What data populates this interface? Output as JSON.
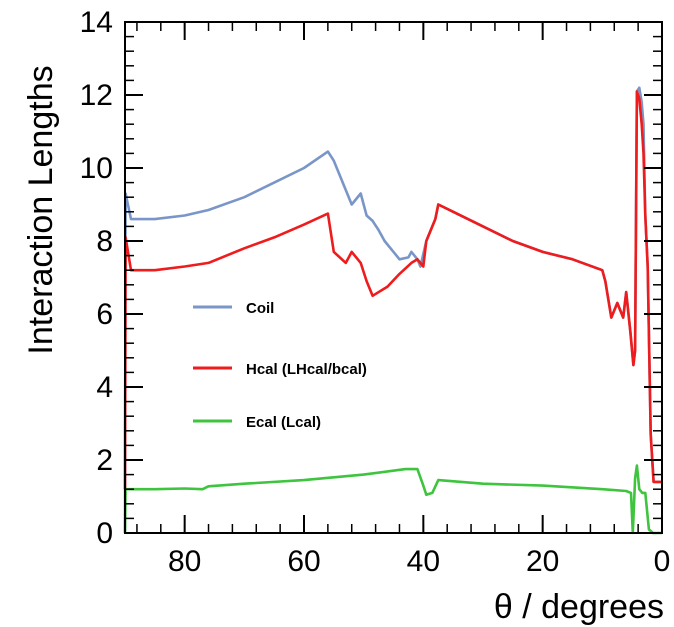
{
  "chart_data": {
    "type": "line",
    "title": "",
    "xlabel": "θ / degrees",
    "ylabel": "Interaction Lengths",
    "xlim": [
      90,
      0
    ],
    "ylim": [
      0,
      14
    ],
    "x_ticks": [
      80,
      60,
      40,
      20,
      0
    ],
    "y_ticks": [
      0,
      2,
      4,
      6,
      8,
      10,
      12,
      14
    ],
    "x_tick_labels": [
      "80",
      "60",
      "40",
      "20",
      "0"
    ],
    "y_tick_labels": [
      "0",
      "2",
      "4",
      "6",
      "8",
      "10",
      "12",
      "14"
    ],
    "grid": false,
    "legend_position": "center-left",
    "series": [
      {
        "name": "Coil",
        "color": "#7a96c8",
        "points": [
          [
            90,
            0
          ],
          [
            89.9,
            9.3
          ],
          [
            89,
            8.6
          ],
          [
            85,
            8.6
          ],
          [
            80,
            8.7
          ],
          [
            76,
            8.85
          ],
          [
            70,
            9.2
          ],
          [
            65,
            9.6
          ],
          [
            60,
            10.0
          ],
          [
            56,
            10.45
          ],
          [
            55,
            10.2
          ],
          [
            52,
            9.0
          ],
          [
            50.5,
            9.3
          ],
          [
            49.5,
            8.7
          ],
          [
            48.5,
            8.55
          ],
          [
            47.5,
            8.3
          ],
          [
            46.5,
            8.0
          ],
          [
            45,
            7.7
          ],
          [
            44,
            7.5
          ],
          [
            42.5,
            7.55
          ],
          [
            42,
            7.7
          ],
          [
            41.5,
            7.6
          ],
          [
            41,
            7.5
          ],
          [
            40.5,
            7.3
          ],
          [
            39.5,
            8.0
          ],
          [
            38,
            8.6
          ],
          [
            37.5,
            9.0
          ],
          [
            35,
            8.8
          ],
          [
            30,
            8.4
          ],
          [
            25,
            8.0
          ],
          [
            20,
            7.7
          ],
          [
            15,
            7.5
          ],
          [
            10,
            7.2
          ],
          [
            9.5,
            6.9
          ],
          [
            8.5,
            5.9
          ],
          [
            7.5,
            6.3
          ],
          [
            6.5,
            5.9
          ],
          [
            6,
            6.6
          ],
          [
            5.3,
            5.5
          ],
          [
            4.8,
            4.6
          ],
          [
            4.5,
            5.0
          ],
          [
            4.2,
            12.1
          ],
          [
            3.8,
            12.2
          ],
          [
            3.4,
            11.8
          ],
          [
            3.1,
            11.2
          ],
          [
            2.8,
            8.7
          ],
          [
            2.4,
            7.3
          ],
          [
            1.9,
            2.7
          ],
          [
            1.4,
            1.4
          ],
          [
            0,
            1.4
          ]
        ]
      },
      {
        "name": "Hcal (LHcal/bcal)",
        "color": "#ee1c1c",
        "points": [
          [
            90,
            1.2
          ],
          [
            89.9,
            8.1
          ],
          [
            89,
            7.2
          ],
          [
            85,
            7.2
          ],
          [
            80,
            7.3
          ],
          [
            76,
            7.4
          ],
          [
            70,
            7.8
          ],
          [
            65,
            8.1
          ],
          [
            60,
            8.45
          ],
          [
            56,
            8.75
          ],
          [
            55,
            7.7
          ],
          [
            53,
            7.4
          ],
          [
            52,
            7.7
          ],
          [
            50.5,
            7.4
          ],
          [
            49.5,
            6.9
          ],
          [
            48.5,
            6.5
          ],
          [
            46,
            6.75
          ],
          [
            44,
            7.1
          ],
          [
            42,
            7.4
          ],
          [
            41,
            7.5
          ],
          [
            40,
            7.3
          ],
          [
            39.5,
            8.0
          ],
          [
            38,
            8.6
          ],
          [
            37.5,
            9.0
          ],
          [
            35,
            8.8
          ],
          [
            30,
            8.4
          ],
          [
            25,
            8.0
          ],
          [
            20,
            7.7
          ],
          [
            15,
            7.5
          ],
          [
            10,
            7.2
          ],
          [
            9.5,
            6.9
          ],
          [
            8.5,
            5.9
          ],
          [
            7.5,
            6.3
          ],
          [
            6.5,
            5.9
          ],
          [
            6,
            6.6
          ],
          [
            5.3,
            5.5
          ],
          [
            4.8,
            4.6
          ],
          [
            4.5,
            5.0
          ],
          [
            4.2,
            12.1
          ],
          [
            3.8,
            11.9
          ],
          [
            3.4,
            11.2
          ],
          [
            3.1,
            10.4
          ],
          [
            2.8,
            8.7
          ],
          [
            2.4,
            7.3
          ],
          [
            1.9,
            2.7
          ],
          [
            1.4,
            1.4
          ],
          [
            0,
            1.4
          ]
        ]
      },
      {
        "name": "Ecal (Lcal)",
        "color": "#3ec43e",
        "points": [
          [
            90,
            0
          ],
          [
            89.9,
            1.2
          ],
          [
            85,
            1.2
          ],
          [
            80,
            1.22
          ],
          [
            77,
            1.2
          ],
          [
            76,
            1.28
          ],
          [
            70,
            1.35
          ],
          [
            60,
            1.45
          ],
          [
            50,
            1.6
          ],
          [
            43,
            1.75
          ],
          [
            41,
            1.75
          ],
          [
            40,
            1.3
          ],
          [
            39.5,
            1.05
          ],
          [
            38.5,
            1.1
          ],
          [
            37.5,
            1.45
          ],
          [
            30,
            1.35
          ],
          [
            20,
            1.3
          ],
          [
            10,
            1.2
          ],
          [
            6,
            1.15
          ],
          [
            5.2,
            1.1
          ],
          [
            4.9,
            0
          ],
          [
            4.5,
            1.5
          ],
          [
            4.2,
            1.85
          ],
          [
            3.8,
            1.2
          ],
          [
            3.3,
            1.1
          ],
          [
            2.8,
            1.1
          ],
          [
            2.2,
            0.1
          ],
          [
            1.5,
            0
          ],
          [
            0,
            0
          ]
        ]
      }
    ]
  }
}
